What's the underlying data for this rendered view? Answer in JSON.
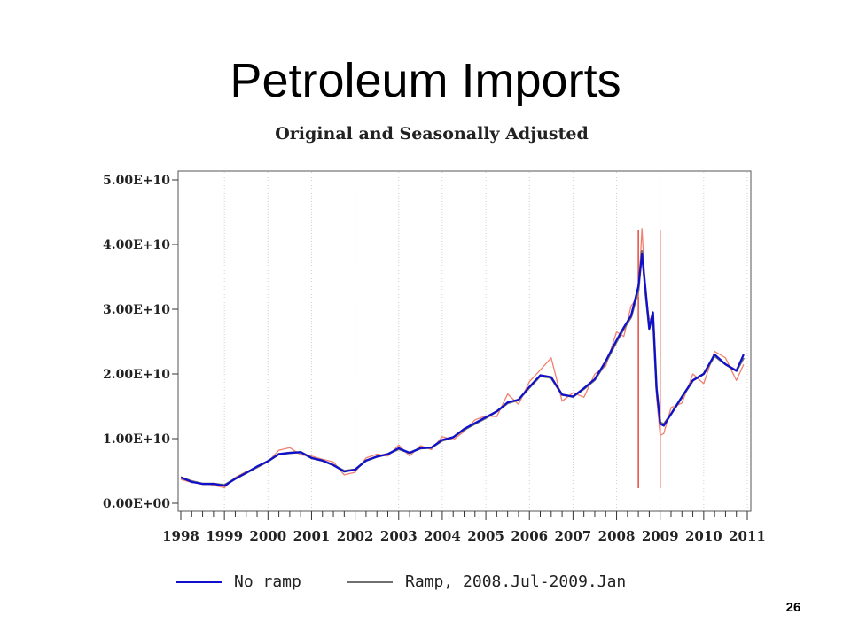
{
  "slide": {
    "title": "Petroleum Imports",
    "page_number": "26"
  },
  "chart_data": {
    "type": "line",
    "title": "Original and Seasonally Adjusted",
    "xlabel": "",
    "ylabel": "",
    "xlim": [
      1998,
      2011
    ],
    "ylim": [
      0,
      50000000000
    ],
    "yticks": [
      0,
      10000000000,
      20000000000,
      30000000000,
      40000000000,
      50000000000
    ],
    "ytick_labels": [
      "0.00E+00",
      "1.00E+10",
      "2.00E+10",
      "3.00E+10",
      "4.00E+10",
      "5.00E+10"
    ],
    "xticks": [
      1998,
      1999,
      2000,
      2001,
      2002,
      2003,
      2004,
      2005,
      2006,
      2007,
      2008,
      2009,
      2010,
      2011
    ],
    "xtick_labels": [
      "1998",
      "1999",
      "2000",
      "2001",
      "2002",
      "2003",
      "2004",
      "2005",
      "2006",
      "2007",
      "2008",
      "2009",
      "2010",
      "2011"
    ],
    "grid": "vertical dotted",
    "legend_position": "bottom",
    "vlines": [
      2008.5,
      2009.0
    ],
    "vline_color": "#e03020",
    "series": [
      {
        "name": "No ramp",
        "color": "#1010cc",
        "x": [
          1998.0,
          1998.25,
          1998.5,
          1998.75,
          1999.0,
          1999.25,
          1999.5,
          1999.75,
          2000.0,
          2000.25,
          2000.5,
          2000.75,
          2001.0,
          2001.25,
          2001.5,
          2001.75,
          2002.0,
          2002.25,
          2002.5,
          2002.75,
          2003.0,
          2003.25,
          2003.5,
          2003.75,
          2004.0,
          2004.25,
          2004.5,
          2004.75,
          2005.0,
          2005.25,
          2005.5,
          2005.75,
          2006.0,
          2006.25,
          2006.5,
          2006.75,
          2007.0,
          2007.25,
          2007.5,
          2007.75,
          2008.0,
          2008.1667,
          2008.3333,
          2008.5,
          2008.5833,
          2008.6667,
          2008.75,
          2008.8333,
          2008.9167,
          2009.0,
          2009.0833,
          2009.25,
          2009.5,
          2009.75,
          2010.0,
          2010.25,
          2010.5,
          2010.75,
          2010.9167
        ],
        "values": [
          4000000000,
          3300000000,
          3000000000,
          3000000000,
          2700000000,
          3800000000,
          4700000000,
          5700000000,
          6500000000,
          7600000000,
          7800000000,
          7900000000,
          7000000000,
          6600000000,
          5900000000,
          4900000000,
          5200000000,
          6600000000,
          7200000000,
          7600000000,
          8500000000,
          7800000000,
          8500000000,
          8600000000,
          9800000000,
          10200000000,
          11500000000,
          12400000000,
          13300000000,
          14200000000,
          15600000000,
          16000000000,
          18000000000,
          19800000000,
          19500000000,
          16800000000,
          16500000000,
          17800000000,
          19200000000,
          22000000000,
          25200000000,
          27200000000,
          29000000000,
          33500000000,
          38500000000,
          33000000000,
          27000000000,
          29500000000,
          17800000000,
          12300000000,
          12000000000,
          13800000000,
          16500000000,
          19000000000,
          20000000000,
          23000000000,
          21500000000,
          20500000000,
          23000000000
        ]
      },
      {
        "name": "Ramp, 2008.Jul-2009.Jan",
        "color": "#707070",
        "x": [
          1998.0,
          1998.25,
          1998.5,
          1998.75,
          1999.0,
          1999.25,
          1999.5,
          1999.75,
          2000.0,
          2000.25,
          2000.5,
          2000.75,
          2001.0,
          2001.25,
          2001.5,
          2001.75,
          2002.0,
          2002.25,
          2002.5,
          2002.75,
          2003.0,
          2003.25,
          2003.5,
          2003.75,
          2004.0,
          2004.25,
          2004.5,
          2004.75,
          2005.0,
          2005.25,
          2005.5,
          2005.75,
          2006.0,
          2006.25,
          2006.5,
          2006.75,
          2007.0,
          2007.25,
          2007.5,
          2007.75,
          2008.0,
          2008.1667,
          2008.3333,
          2008.5,
          2008.5833,
          2008.6667,
          2008.75,
          2008.8333,
          2008.9167,
          2009.0,
          2009.0833,
          2009.25,
          2009.5,
          2009.75,
          2010.0,
          2010.25,
          2010.5,
          2010.75,
          2010.9167
        ],
        "values": [
          4000000000,
          3400000000,
          3000000000,
          3000000000,
          2800000000,
          3800000000,
          4700000000,
          5600000000,
          6500000000,
          7600000000,
          7800000000,
          7900000000,
          7000000000,
          6600000000,
          5900000000,
          5000000000,
          5200000000,
          6600000000,
          7200000000,
          7600000000,
          8400000000,
          7800000000,
          8500000000,
          8600000000,
          9700000000,
          10200000000,
          11400000000,
          12300000000,
          13200000000,
          14200000000,
          15500000000,
          16000000000,
          17900000000,
          19700000000,
          19400000000,
          16800000000,
          16500000000,
          17700000000,
          19100000000,
          21800000000,
          25000000000,
          27000000000,
          28800000000,
          33000000000,
          39000000000,
          32500000000,
          27000000000,
          29500000000,
          17800000000,
          12500000000,
          12200000000,
          13800000000,
          16400000000,
          19000000000,
          20000000000,
          22800000000,
          21500000000,
          20500000000,
          22500000000
        ]
      },
      {
        "name": "",
        "color": "#f08070",
        "x": [
          1998.0,
          1998.25,
          1998.5,
          1998.75,
          1999.0,
          1999.25,
          1999.5,
          1999.75,
          2000.0,
          2000.25,
          2000.5,
          2000.75,
          2001.0,
          2001.25,
          2001.5,
          2001.75,
          2002.0,
          2002.25,
          2002.5,
          2002.75,
          2003.0,
          2003.25,
          2003.5,
          2003.75,
          2004.0,
          2004.25,
          2004.5,
          2004.75,
          2005.0,
          2005.25,
          2005.5,
          2005.75,
          2006.0,
          2006.25,
          2006.5,
          2006.75,
          2007.0,
          2007.25,
          2007.5,
          2007.75,
          2008.0,
          2008.1667,
          2008.3333,
          2008.5,
          2008.5833,
          2008.6667,
          2008.75,
          2008.8333,
          2008.9167,
          2009.0,
          2009.0833,
          2009.25,
          2009.5,
          2009.75,
          2010.0,
          2010.25,
          2010.5,
          2010.75,
          2010.9167
        ],
        "values": [
          3700000000,
          3200000000,
          3100000000,
          2800000000,
          2400000000,
          4000000000,
          4900000000,
          5500000000,
          6400000000,
          8200000000,
          8600000000,
          7500000000,
          7300000000,
          6800000000,
          6400000000,
          4400000000,
          4800000000,
          7000000000,
          7600000000,
          7300000000,
          9000000000,
          7300000000,
          8900000000,
          8300000000,
          10300000000,
          9800000000,
          11100000000,
          12900000000,
          13500000000,
          13400000000,
          16900000000,
          15300000000,
          18800000000,
          20600000000,
          22500000000,
          15800000000,
          17100000000,
          16400000000,
          20000000000,
          21200000000,
          26500000000,
          25800000000,
          30500000000,
          32000000000,
          42500000000,
          32000000000,
          28500000000,
          28500000000,
          16500000000,
          10500000000,
          10800000000,
          14800000000,
          15500000000,
          20000000000,
          18500000000,
          23500000000,
          22500000000,
          19000000000,
          21500000000
        ]
      }
    ]
  }
}
